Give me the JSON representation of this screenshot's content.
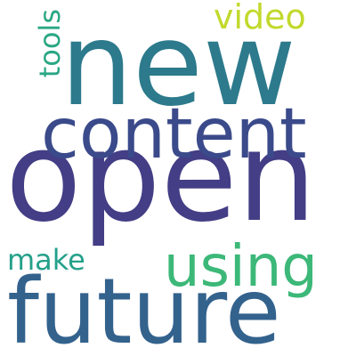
{
  "words": [
    {
      "key": "new",
      "text": "new",
      "color": "#2c7a8c",
      "orientation": "horizontal"
    },
    {
      "key": "open",
      "text": "open",
      "color": "#433e85",
      "orientation": "horizontal"
    },
    {
      "key": "content",
      "text": "content",
      "color": "#3a4a8a",
      "orientation": "horizontal"
    },
    {
      "key": "future",
      "text": "future",
      "color": "#33628d",
      "orientation": "horizontal"
    },
    {
      "key": "using",
      "text": "using",
      "color": "#3cb878",
      "orientation": "horizontal"
    },
    {
      "key": "video",
      "text": "video",
      "color": "#c2d92c",
      "orientation": "horizontal"
    },
    {
      "key": "make",
      "text": "make",
      "color": "#25a08a",
      "orientation": "horizontal"
    },
    {
      "key": "tools",
      "text": "tools",
      "color": "#2aa784",
      "orientation": "vertical"
    }
  ],
  "background_color": "#ffffff"
}
